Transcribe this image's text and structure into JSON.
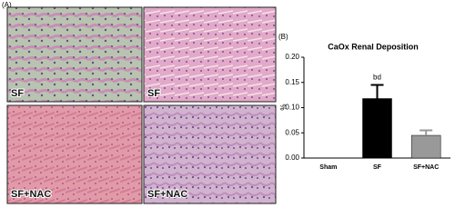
{
  "panel_labels": [
    "(A)",
    "(B)"
  ],
  "micrographs": [
    {
      "label": "SF"
    },
    {
      "label": "SF"
    },
    {
      "label": "SF+NAC"
    },
    {
      "label": "SF+NAC"
    }
  ],
  "chart_data": {
    "type": "bar",
    "title": "CaOx Renal Deposition",
    "ylabel": "%",
    "categories": [
      "Sham",
      "SF",
      "SF+NAC"
    ],
    "values": [
      0,
      0.118,
      0.045
    ],
    "errors": [
      0,
      0.027,
      0.01
    ],
    "colors": [
      "#000000",
      "#000000",
      "#999999"
    ],
    "ylim": [
      0,
      0.2
    ],
    "yticks": [
      {
        "value": 0,
        "label": "0.00"
      },
      {
        "value": 0.05,
        "label": "0.05"
      },
      {
        "value": 0.1,
        "label": "0.10"
      },
      {
        "value": 0.15,
        "label": "0.15"
      },
      {
        "value": 0.2,
        "label": "0.20"
      }
    ],
    "annotations": [
      {
        "text": "bd",
        "category": "SF"
      }
    ]
  }
}
